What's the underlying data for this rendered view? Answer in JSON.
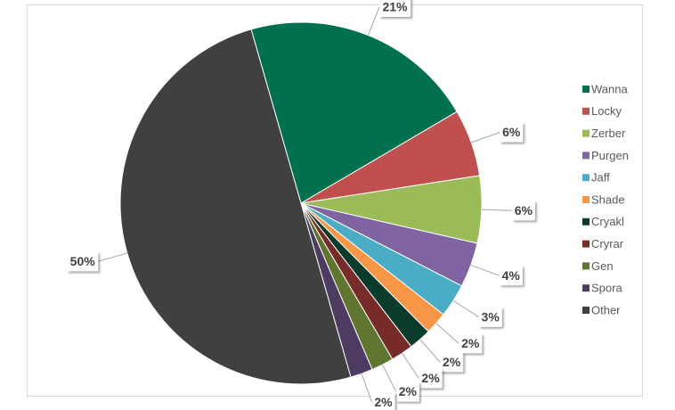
{
  "chart_data": {
    "type": "pie",
    "categories": [
      "Wanna",
      "Locky",
      "Zerber",
      "Purgen",
      "Jaff",
      "Shade",
      "Cryakl",
      "Cryrar",
      "Gen",
      "Spora",
      "Other"
    ],
    "values": [
      21,
      6,
      6,
      4,
      3,
      2,
      2,
      2,
      2,
      2,
      50
    ],
    "value_labels": [
      "21%",
      "6%",
      "6%",
      "4%",
      "3%",
      "2%",
      "2%",
      "2%",
      "2%",
      "2%",
      "50%"
    ],
    "colors": [
      "#00704f",
      "#c0504d",
      "#9bbb59",
      "#8064a2",
      "#4bacc6",
      "#f79646",
      "#0b3b2a",
      "#772c2a",
      "#5f7530",
      "#4d3b62",
      "#404040"
    ],
    "legend": "right"
  }
}
